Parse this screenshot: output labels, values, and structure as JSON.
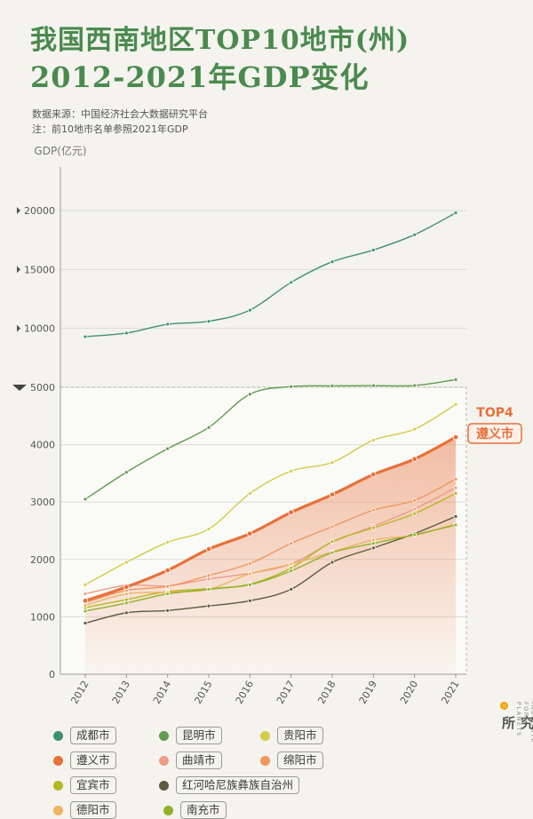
{
  "header": {
    "title_line1": "我国西南地区TOP10地市(州)",
    "title_line2": "2012-2021年GDP变化",
    "source": "数据来源：中国经济社会大数据研究平台",
    "note": "注：前10地市名单参照2021年GDP"
  },
  "brand": {
    "english": "INSTITUTE FOR PLANETS",
    "chinese": "星球研究所"
  },
  "highlight": {
    "rank": "TOP4",
    "city": "遵义市",
    "color": "#e8703a"
  },
  "chart_data": {
    "type": "line",
    "ylabel": "GDP(亿元)",
    "x": [
      "2012",
      "2013",
      "2014",
      "2015",
      "2016",
      "2017",
      "2018",
      "2019",
      "2020",
      "2021"
    ],
    "y_axis_break": 5000,
    "yticks_lower": [
      "0",
      "1000",
      "2000",
      "3000",
      "4000",
      "5000"
    ],
    "yticks_upper": [
      "10000",
      "15000",
      "20000"
    ],
    "grid": true,
    "series": [
      {
        "name": "成都市",
        "color": "#3f9176",
        "values": [
          9300,
          9600,
          10350,
          10600,
          11550,
          13900,
          15650,
          16650,
          17950,
          19800
        ]
      },
      {
        "name": "昆明市",
        "color": "#5f9c4f",
        "values": [
          3050,
          3520,
          3930,
          4300,
          4880,
          5060,
          5120,
          5140,
          5150,
          5650
        ]
      },
      {
        "name": "贵阳市",
        "color": "#d4cc4a",
        "values": [
          1560,
          1950,
          2300,
          2530,
          3150,
          3540,
          3690,
          4080,
          4270,
          4700
        ]
      },
      {
        "name": "遵义市",
        "color": "#e8703a",
        "values": [
          1280,
          1520,
          1810,
          2180,
          2450,
          2820,
          3130,
          3480,
          3750,
          4130
        ]
      },
      {
        "name": "曲靖市",
        "color": "#ec9c88",
        "values": [
          1400,
          1550,
          1540,
          1660,
          1760,
          1920,
          2300,
          2580,
          2880,
          3250
        ]
      },
      {
        "name": "绵阳市",
        "color": "#f0975f",
        "values": [
          1250,
          1460,
          1530,
          1720,
          1930,
          2280,
          2570,
          2860,
          3030,
          3400
        ]
      },
      {
        "name": "宜宾市",
        "color": "#b5b820",
        "values": [
          1160,
          1300,
          1440,
          1490,
          1570,
          1850,
          2310,
          2550,
          2800,
          3150
        ]
      },
      {
        "name": "红河哈尼族彝族自治州",
        "color": "#5b5b3d",
        "values": [
          890,
          1070,
          1110,
          1190,
          1280,
          1480,
          1950,
          2200,
          2450,
          2750
        ]
      },
      {
        "name": "德阳市",
        "color": "#f0b362",
        "values": [
          1200,
          1400,
          1430,
          1480,
          1750,
          1920,
          2130,
          2340,
          2420,
          2620
        ]
      },
      {
        "name": "南充市",
        "color": "#8fb22a",
        "values": [
          1100,
          1240,
          1400,
          1480,
          1560,
          1800,
          2120,
          2280,
          2430,
          2600
        ]
      }
    ]
  }
}
